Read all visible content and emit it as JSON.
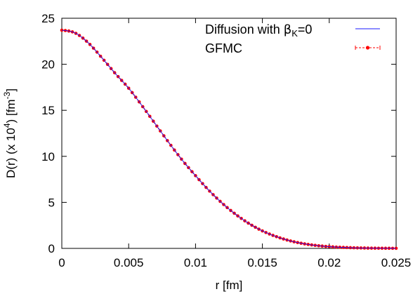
{
  "chart_data": {
    "type": "line",
    "xlabel": "r [fm]",
    "ylabel": {
      "pre": "D(r) (x 10",
      "exp1": "4",
      "mid": ") [fm",
      "exp2": "-3",
      "post": "]"
    },
    "xlim": [
      0,
      0.025
    ],
    "ylim": [
      0,
      25
    ],
    "xticks": [
      0,
      0.005,
      0.01,
      0.015,
      0.02,
      0.025
    ],
    "xtick_labels": [
      "0",
      "0.005",
      "0.01",
      "0.015",
      "0.02",
      "0.025"
    ],
    "yticks": [
      0,
      5,
      10,
      15,
      20,
      25
    ],
    "ytick_labels": [
      "0",
      "5",
      "10",
      "15",
      "20",
      "25"
    ],
    "grid": false,
    "legend_position": "top-right",
    "colors": {
      "diffusion": "#1a1aff",
      "gfmc": "#ff0000"
    },
    "series": [
      {
        "key": "diffusion",
        "name": {
          "pre": "Diffusion with ",
          "symbol": "β",
          "sub": "K",
          "post": "=0"
        },
        "style": "line",
        "x": [
          0,
          0.001,
          0.002,
          0.003,
          0.004,
          0.005,
          0.006,
          0.007,
          0.008,
          0.009,
          0.01,
          0.011,
          0.012,
          0.013,
          0.014,
          0.015,
          0.016,
          0.017,
          0.018,
          0.019,
          0.02,
          0.021,
          0.022,
          0.023,
          0.024,
          0.025
        ],
        "y": [
          23.7,
          23.4,
          22.3,
          20.7,
          19.0,
          17.4,
          15.5,
          13.5,
          11.5,
          9.6,
          7.9,
          6.3,
          4.9,
          3.7,
          2.7,
          1.9,
          1.3,
          0.85,
          0.53,
          0.32,
          0.19,
          0.11,
          0.06,
          0.03,
          0.015,
          0.008
        ]
      },
      {
        "key": "gfmc",
        "name": {
          "pre": "GFMC"
        },
        "style": "points-line-errorbars",
        "x": [
          0,
          0.001,
          0.002,
          0.003,
          0.004,
          0.005,
          0.006,
          0.007,
          0.008,
          0.009,
          0.01,
          0.011,
          0.012,
          0.013,
          0.014,
          0.015,
          0.016,
          0.017,
          0.018,
          0.019,
          0.02,
          0.021,
          0.022,
          0.023,
          0.024,
          0.025
        ],
        "y": [
          23.7,
          23.4,
          22.3,
          20.7,
          19.0,
          17.4,
          15.5,
          13.5,
          11.5,
          9.6,
          7.9,
          6.3,
          4.9,
          3.7,
          2.7,
          1.9,
          1.3,
          0.85,
          0.53,
          0.32,
          0.19,
          0.11,
          0.06,
          0.03,
          0.015,
          0.008
        ]
      }
    ]
  }
}
